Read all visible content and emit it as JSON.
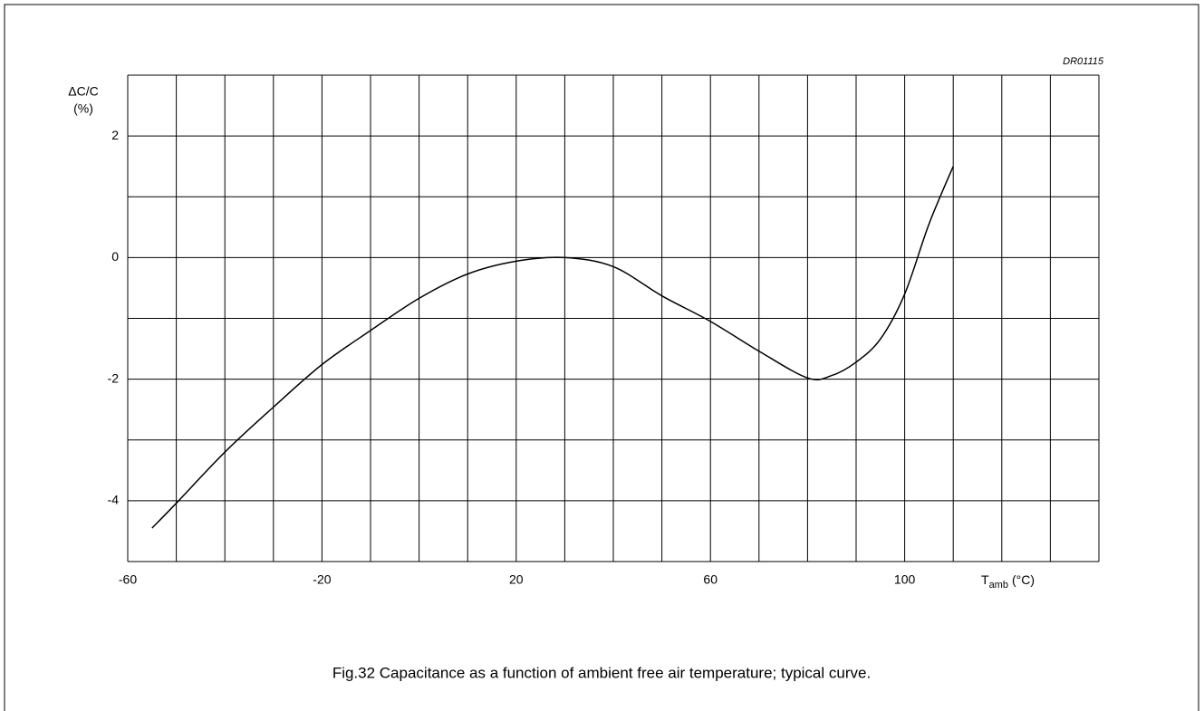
{
  "chart_data": {
    "type": "line",
    "code": "DR01115",
    "y_label": [
      "ΔC/C",
      "(%)"
    ],
    "x_label": {
      "main": "T",
      "sub": "amb",
      "unit": "(°C)"
    },
    "caption": "Fig.32  Capacitance as a function of ambient free air temperature; typical curve.",
    "xlim": [
      -60,
      140
    ],
    "ylim": [
      -5,
      3
    ],
    "xticks": [
      -60,
      -20,
      20,
      60,
      100
    ],
    "yticks": [
      2,
      0,
      -2,
      -4
    ],
    "xgrid": [
      -60,
      -50,
      -40,
      -30,
      -20,
      -10,
      0,
      10,
      20,
      30,
      40,
      50,
      60,
      70,
      80,
      90,
      100,
      110,
      120,
      130,
      140
    ],
    "ygrid": [
      -5,
      -4,
      -3,
      -2,
      -1,
      0,
      1,
      2,
      3
    ],
    "grid": true,
    "color": "#000000",
    "x": [
      -55,
      -50,
      -40,
      -30,
      -20,
      -10,
      0,
      10,
      20,
      30,
      40,
      50,
      60,
      70,
      80,
      85,
      90,
      95,
      100,
      105,
      110
    ],
    "values": [
      -4.45,
      -4.04,
      -3.2,
      -2.46,
      -1.76,
      -1.2,
      -0.67,
      -0.27,
      -0.06,
      0,
      -0.15,
      -0.63,
      -1.05,
      -1.54,
      -1.98,
      -1.94,
      -1.72,
      -1.34,
      -0.6,
      0.55,
      1.5
    ]
  }
}
